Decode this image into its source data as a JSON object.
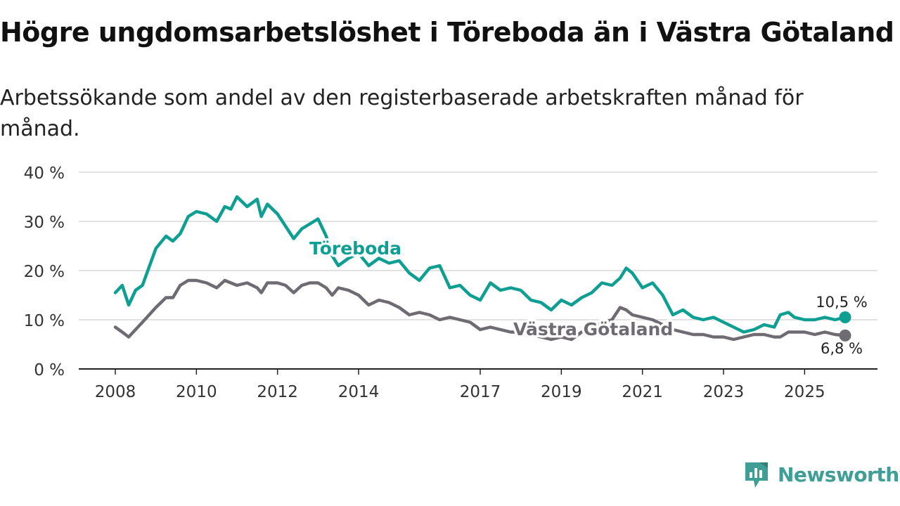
{
  "title": "Högre ungdomsarbetslöshet i Töreboda än i Västra Götaland",
  "subtitle": "Arbetssökande som andel av den registerbaserade arbetskraften månad för månad.",
  "brand": {
    "name": "Newsworthy",
    "icon": "newsworthy-logo-icon",
    "color": "#3f9e96"
  },
  "chart_data": {
    "type": "line",
    "title": "Högre ungdomsarbetslöshet i Töreboda än i Västra Götaland",
    "ylabel": "",
    "xlabel": "",
    "ylim": [
      0,
      40
    ],
    "xlim": [
      2008.0,
      2026.0
    ],
    "yticks": [
      0,
      10,
      20,
      30,
      40
    ],
    "ytick_labels": [
      "0 %",
      "10 %",
      "20 %",
      "30 %",
      "40 %"
    ],
    "xticks": [
      2008,
      2010,
      2012,
      2014,
      2017,
      2019,
      2021,
      2023,
      2025
    ],
    "xtick_labels": [
      "2008",
      "2010",
      "2012",
      "2014",
      "2017",
      "2019",
      "2021",
      "2023",
      "2025"
    ],
    "grid": true,
    "series": [
      {
        "name": "Töreboda",
        "color": "#0f9f92",
        "last_value_label": "10,5 %",
        "x": [
          2008.0,
          2008.17,
          2008.33,
          2008.5,
          2008.67,
          2009.0,
          2009.25,
          2009.42,
          2009.6,
          2009.8,
          2010.0,
          2010.25,
          2010.5,
          2010.7,
          2010.85,
          2011.0,
          2011.25,
          2011.5,
          2011.6,
          2011.75,
          2012.0,
          2012.2,
          2012.4,
          2012.6,
          2012.8,
          2013.0,
          2013.2,
          2013.35,
          2013.5,
          2013.75,
          2014.0,
          2014.25,
          2014.5,
          2014.75,
          2015.0,
          2015.25,
          2015.5,
          2015.75,
          2016.0,
          2016.25,
          2016.5,
          2016.75,
          2017.0,
          2017.25,
          2017.5,
          2017.75,
          2018.0,
          2018.25,
          2018.5,
          2018.75,
          2019.0,
          2019.25,
          2019.5,
          2019.75,
          2020.0,
          2020.25,
          2020.45,
          2020.6,
          2020.75,
          2021.0,
          2021.25,
          2021.5,
          2021.75,
          2022.0,
          2022.25,
          2022.5,
          2022.75,
          2023.0,
          2023.25,
          2023.5,
          2023.75,
          2024.0,
          2024.25,
          2024.4,
          2024.6,
          2024.75,
          2025.0,
          2025.25,
          2025.5,
          2025.75,
          2026.0
        ],
        "values": [
          15.5,
          17.0,
          13.0,
          16.0,
          17.0,
          24.5,
          27.0,
          26.0,
          27.5,
          31.0,
          32.0,
          31.5,
          30.0,
          33.0,
          32.5,
          35.0,
          33.0,
          34.5,
          31.0,
          33.5,
          31.5,
          29.0,
          26.5,
          28.5,
          29.5,
          30.5,
          27.0,
          23.0,
          21.0,
          22.5,
          23.5,
          21.0,
          22.5,
          21.5,
          22.0,
          19.5,
          18.0,
          20.5,
          21.0,
          16.5,
          17.0,
          15.0,
          14.0,
          17.5,
          16.0,
          16.5,
          16.0,
          14.0,
          13.5,
          12.0,
          14.0,
          13.0,
          14.5,
          15.5,
          17.5,
          17.0,
          18.5,
          20.5,
          19.5,
          16.5,
          17.5,
          15.0,
          11.0,
          12.0,
          10.5,
          10.0,
          10.5,
          9.5,
          8.5,
          7.5,
          8.0,
          9.0,
          8.5,
          11.0,
          11.5,
          10.5,
          10.0,
          10.0,
          10.5,
          10.0,
          10.5
        ]
      },
      {
        "name": "Västra Götaland",
        "color": "#6f6b72",
        "last_value_label": "6,8 %",
        "x": [
          2008.0,
          2008.17,
          2008.33,
          2008.5,
          2008.67,
          2009.0,
          2009.25,
          2009.42,
          2009.6,
          2009.8,
          2010.0,
          2010.25,
          2010.5,
          2010.7,
          2010.85,
          2011.0,
          2011.25,
          2011.5,
          2011.6,
          2011.75,
          2012.0,
          2012.2,
          2012.4,
          2012.6,
          2012.8,
          2013.0,
          2013.2,
          2013.35,
          2013.5,
          2013.75,
          2014.0,
          2014.25,
          2014.5,
          2014.75,
          2015.0,
          2015.25,
          2015.5,
          2015.75,
          2016.0,
          2016.25,
          2016.5,
          2016.75,
          2017.0,
          2017.25,
          2017.5,
          2017.75,
          2018.0,
          2018.25,
          2018.5,
          2018.75,
          2019.0,
          2019.25,
          2019.5,
          2019.75,
          2020.0,
          2020.25,
          2020.45,
          2020.6,
          2020.75,
          2021.0,
          2021.25,
          2021.5,
          2021.75,
          2022.0,
          2022.25,
          2022.5,
          2022.75,
          2023.0,
          2023.25,
          2023.5,
          2023.75,
          2024.0,
          2024.25,
          2024.4,
          2024.6,
          2024.75,
          2025.0,
          2025.25,
          2025.5,
          2025.75,
          2026.0
        ],
        "values": [
          8.5,
          7.5,
          6.5,
          8.0,
          9.5,
          12.5,
          14.5,
          14.5,
          17.0,
          18.0,
          18.0,
          17.5,
          16.5,
          18.0,
          17.5,
          17.0,
          17.5,
          16.5,
          15.5,
          17.5,
          17.5,
          17.0,
          15.5,
          17.0,
          17.5,
          17.5,
          16.5,
          15.0,
          16.5,
          16.0,
          15.0,
          13.0,
          14.0,
          13.5,
          12.5,
          11.0,
          11.5,
          11.0,
          10.0,
          10.5,
          10.0,
          9.5,
          8.0,
          8.5,
          8.0,
          7.5,
          7.5,
          7.0,
          6.5,
          6.0,
          6.5,
          6.0,
          7.5,
          8.5,
          9.5,
          10.0,
          12.5,
          12.0,
          11.0,
          10.5,
          10.0,
          9.0,
          8.0,
          7.5,
          7.0,
          7.0,
          6.5,
          6.5,
          6.0,
          6.5,
          7.0,
          7.0,
          6.5,
          6.5,
          7.5,
          7.5,
          7.5,
          7.0,
          7.5,
          7.0,
          6.8
        ]
      }
    ]
  }
}
